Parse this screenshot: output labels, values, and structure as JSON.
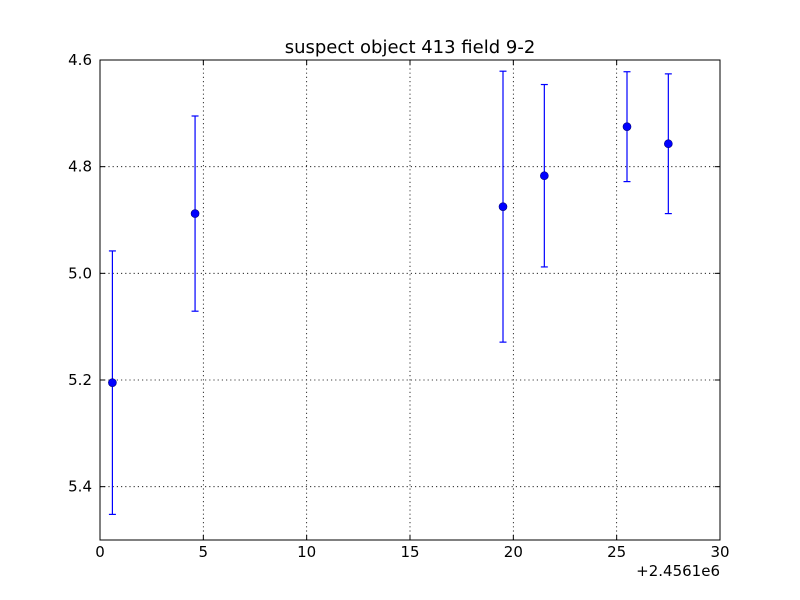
{
  "chart_data": {
    "type": "scatter",
    "title": "suspect object 413 field 9-2",
    "xlabel": "",
    "ylabel": "",
    "x_offset_label": "+2.4561e6",
    "xlim": [
      0,
      30
    ],
    "ylim": [
      5.5,
      4.6
    ],
    "y_inverted": true,
    "grid": true,
    "x_ticks": [
      0,
      5,
      10,
      15,
      20,
      25,
      30
    ],
    "x_tick_labels": [
      "0",
      "5",
      "10",
      "15",
      "20",
      "25",
      "30"
    ],
    "y_ticks": [
      4.6,
      4.8,
      5.0,
      5.2,
      5.4
    ],
    "y_tick_labels": [
      "4.6",
      "4.8",
      "5.0",
      "5.2",
      "5.4"
    ],
    "series": [
      {
        "color": "#0000ff",
        "marker": "circle",
        "points": [
          {
            "x": 0.6,
            "y": 5.205,
            "yerr": 0.247
          },
          {
            "x": 4.6,
            "y": 4.888,
            "yerr": 0.183
          },
          {
            "x": 19.5,
            "y": 4.875,
            "yerr": 0.254
          },
          {
            "x": 21.5,
            "y": 4.817,
            "yerr": 0.171
          },
          {
            "x": 25.5,
            "y": 4.725,
            "yerr": 0.103
          },
          {
            "x": 27.5,
            "y": 4.757,
            "yerr": 0.131
          }
        ]
      }
    ]
  }
}
